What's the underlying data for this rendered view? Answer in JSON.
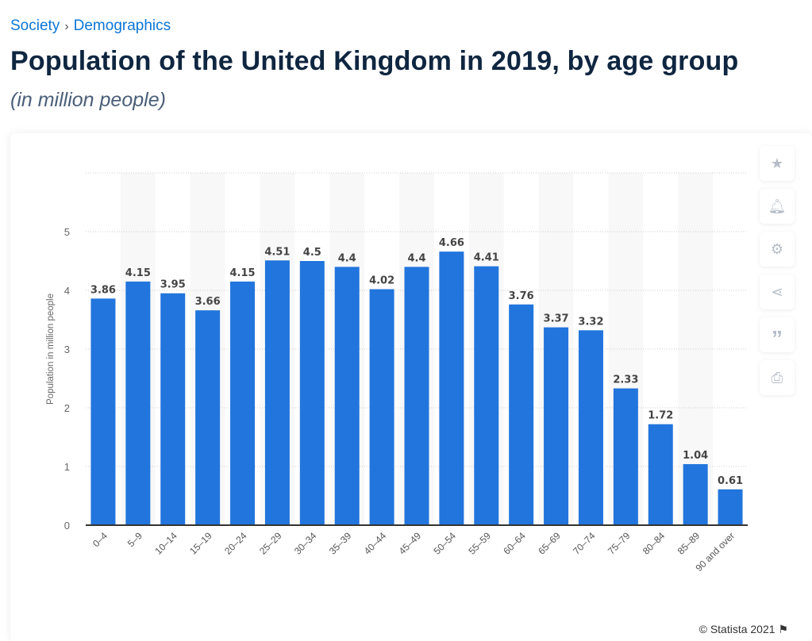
{
  "breadcrumb": [
    "Society",
    "Demographics"
  ],
  "title": "Population of the United Kingdom in 2019, by age group",
  "subtitle": "(in million people)",
  "sidebar": [
    {
      "icon": "star-icon"
    },
    {
      "icon": "bell-icon"
    },
    {
      "icon": "gear-icon"
    },
    {
      "icon": "share-icon"
    },
    {
      "icon": "quote-icon"
    },
    {
      "icon": "print-icon"
    }
  ],
  "credit": "© Statista 2021",
  "chart_data": {
    "type": "bar",
    "categories": [
      "0-4",
      "5-9",
      "10-14",
      "15-19",
      "20-24",
      "25-29",
      "30-34",
      "35-39",
      "40-44",
      "45-49",
      "50-54",
      "55-59",
      "60-64",
      "65-69",
      "70-74",
      "75-79",
      "80-84",
      "85-89",
      "90 and over"
    ],
    "values": [
      3.86,
      4.15,
      3.95,
      3.66,
      4.15,
      4.51,
      4.5,
      4.4,
      4.02,
      4.4,
      4.66,
      4.41,
      3.76,
      3.37,
      3.32,
      2.33,
      1.72,
      1.04,
      0.61
    ],
    "ylabel": "Population in million people",
    "xlabel": "",
    "ylim": [
      0,
      6
    ],
    "yticks": [
      0,
      1,
      2,
      3,
      4,
      5
    ],
    "grid": true,
    "bar_color": "#2275dd"
  }
}
